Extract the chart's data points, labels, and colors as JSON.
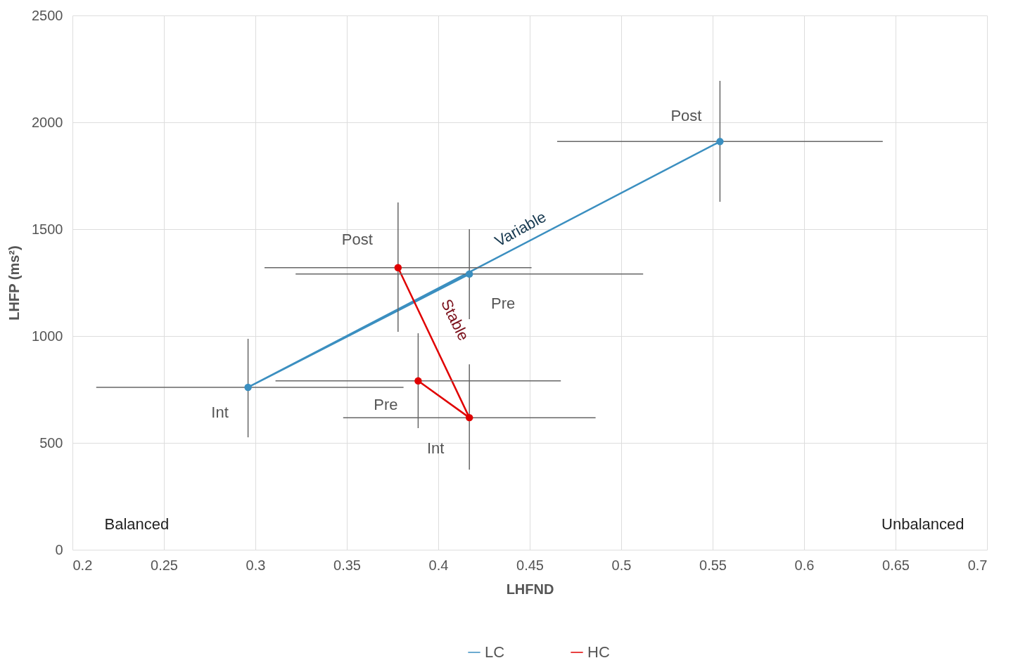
{
  "chart_data": {
    "type": "line",
    "xlabel": "LHFND",
    "ylabel": "LHFP (ms²)",
    "xlim": [
      0.2,
      0.7
    ],
    "ylim": [
      0,
      2500
    ],
    "xticks": [
      0.2,
      0.25,
      0.3,
      0.35,
      0.4,
      0.45,
      0.5,
      0.55,
      0.6,
      0.65,
      0.7
    ],
    "yticks": [
      0,
      500,
      1000,
      1500,
      2000,
      2500
    ],
    "grid": true,
    "legend": "bottom",
    "marker": "circle",
    "line_style": "solid",
    "series": [
      {
        "name": "LC",
        "color": "#3b8fc0",
        "x": [
          0.417,
          0.296,
          0.554
        ],
        "values": [
          1290,
          760,
          1910
        ],
        "xerrors": [
          [
            0.322,
            0.512
          ],
          [
            0.213,
            0.381
          ],
          [
            0.465,
            0.643
          ]
        ],
        "errors": [
          [
            1079,
            1500
          ],
          [
            526,
            987
          ],
          [
            1628,
            2194
          ]
        ]
      },
      {
        "name": "HC",
        "color": "#e00000",
        "x": [
          0.389,
          0.417,
          0.378
        ],
        "values": [
          790,
          618,
          1320
        ],
        "xerrors": [
          [
            0.311,
            0.467
          ],
          [
            0.348,
            0.486
          ],
          [
            0.305,
            0.451
          ]
        ],
        "errors": [
          [
            569,
            1013
          ],
          [
            375,
            868
          ],
          [
            1020,
            1625
          ]
        ]
      }
    ],
    "annotations": [
      {
        "text": "Pre",
        "x": 0.417,
        "y": 1290
      },
      {
        "text": "Int",
        "x": 0.296,
        "y": 760
      },
      {
        "text": "Post",
        "x": 0.554,
        "y": 1910
      },
      {
        "text": "Pre",
        "x": 0.389,
        "y": 790
      },
      {
        "text": "Int",
        "x": 0.417,
        "y": 618
      },
      {
        "text": "Post",
        "x": 0.378,
        "y": 1320
      },
      "Variable",
      "Stable",
      "Balanced",
      "Unbalanced"
    ]
  }
}
